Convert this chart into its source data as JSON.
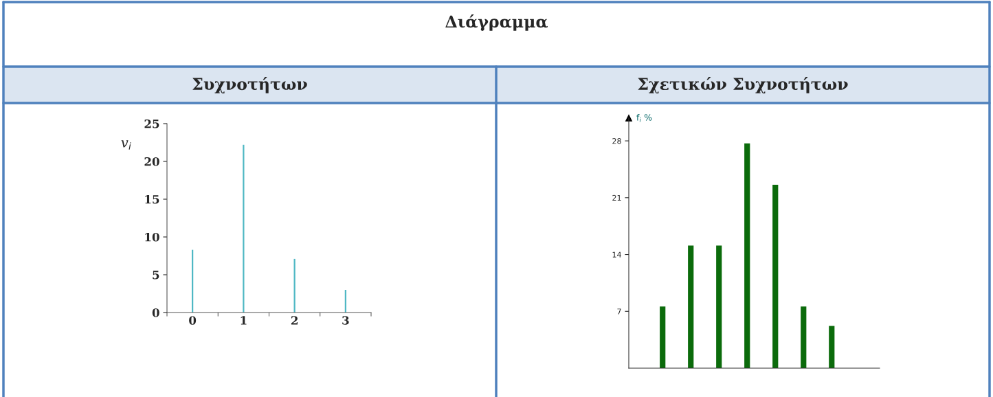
{
  "chart_data": [
    {
      "type": "bar",
      "annotations": [
        "Διάγραμμα"
      ],
      "subtitle": "Συχνοτήτων",
      "ylabel": "v$_{i}$",
      "categories": [
        "0",
        "1",
        "2",
        "3"
      ],
      "values": [
        8.3,
        22.2,
        7.1,
        3.0
      ],
      "color": "#4fb8c4",
      "ylim": [
        0,
        25
      ],
      "yticks": [
        0,
        5,
        10,
        15,
        20,
        25
      ],
      "grid": false,
      "legend": false
    },
    {
      "type": "bar",
      "subtitle": "Σχετικών Συχνοτήτων",
      "ylabel": "f$_{i}$ %",
      "categories": [
        null,
        null,
        null,
        null,
        null,
        null,
        null
      ],
      "values": [
        7.6,
        15.1,
        15.1,
        27.7,
        22.6,
        7.6,
        5.2
      ],
      "color": "#0b6b0b",
      "ylim": [
        0,
        30.8
      ],
      "yticks": [
        7,
        14,
        21,
        28
      ],
      "tick_labels": "y",
      "grid": false,
      "legend": false
    }
  ]
}
